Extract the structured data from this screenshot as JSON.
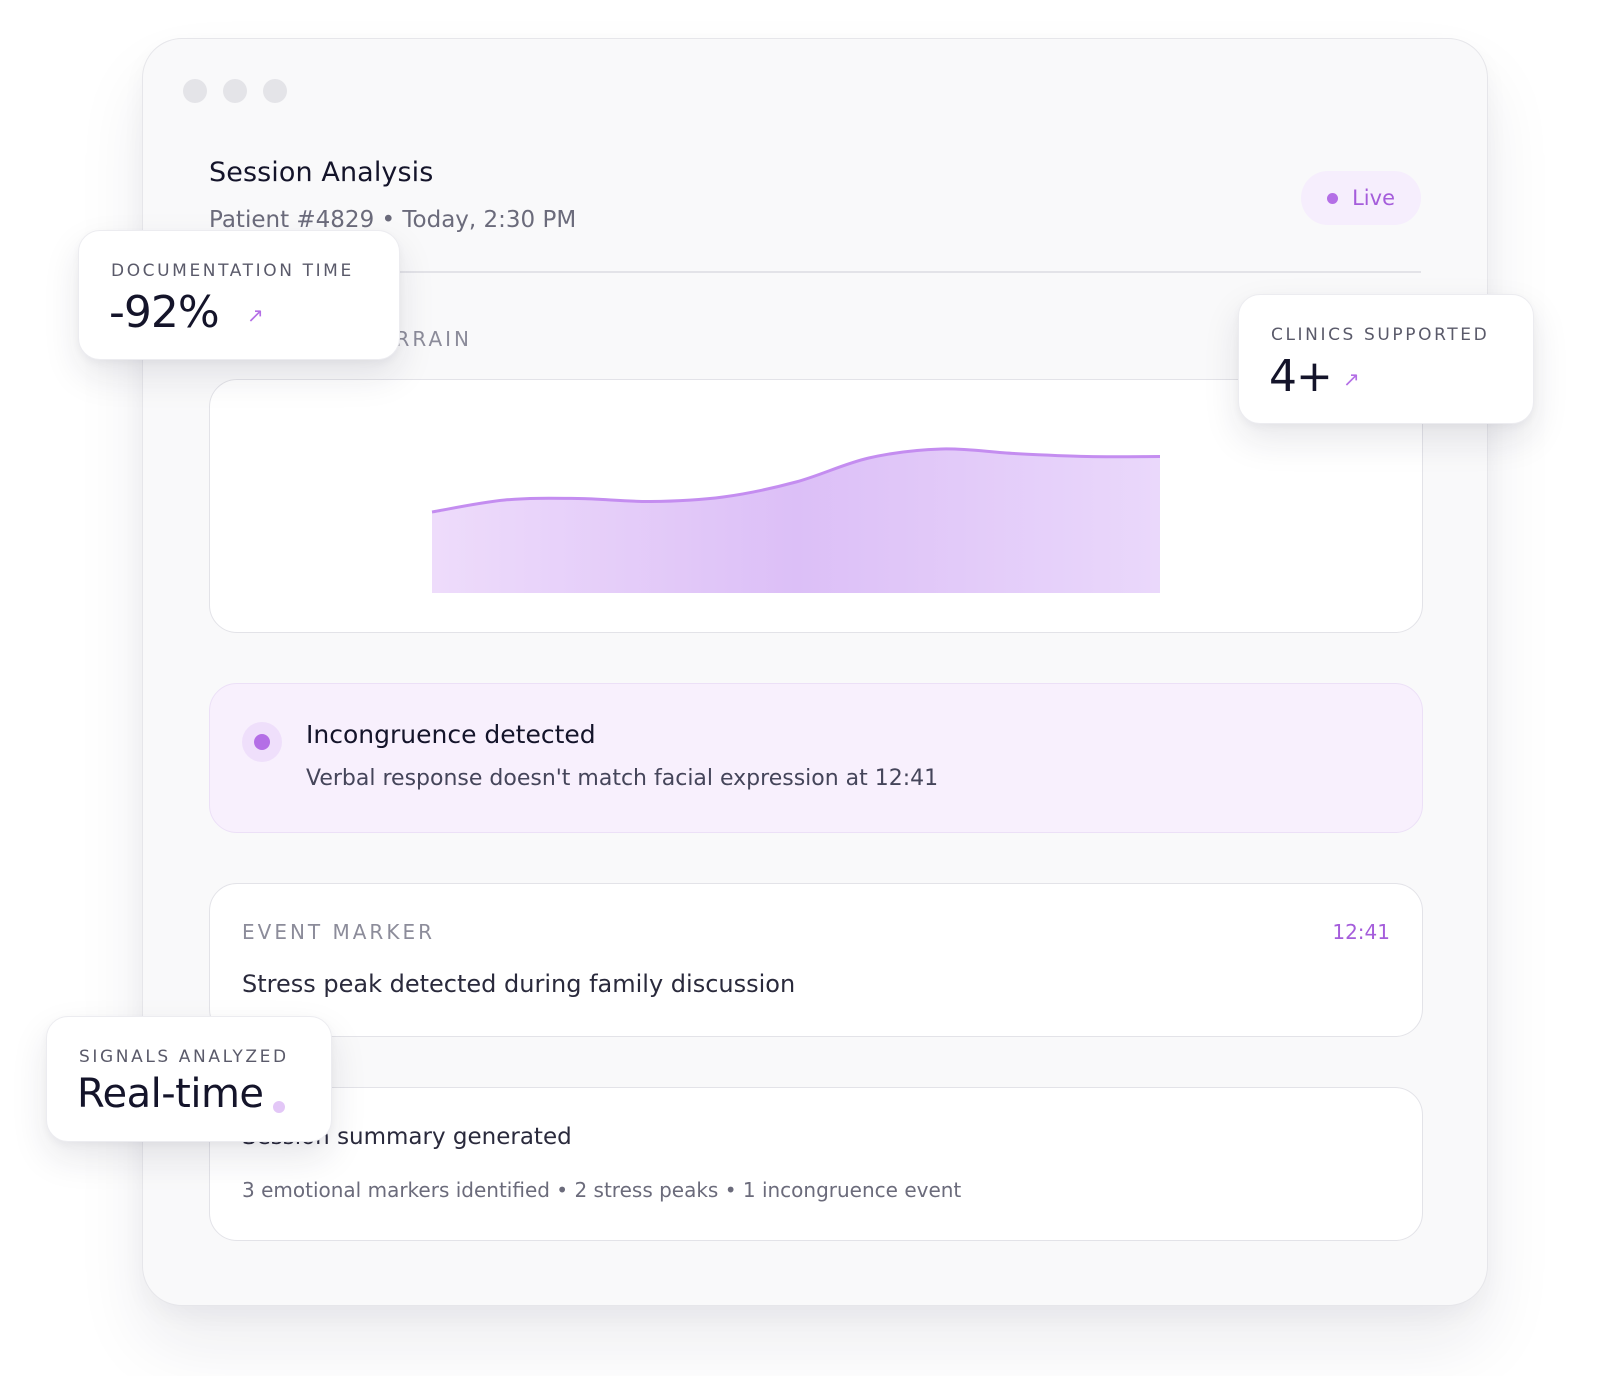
{
  "window": {
    "title": "Session Analysis",
    "subtitle": "Patient #4829 • Today, 2:30 PM",
    "status_label": "Live"
  },
  "section": {
    "label": "EMOTIONAL TERRAIN"
  },
  "chart_data": {
    "type": "area",
    "title": "",
    "xlabel": "",
    "ylabel": "",
    "x": [
      0,
      1,
      2,
      3,
      4,
      5,
      6,
      7,
      8,
      9,
      10
    ],
    "values": [
      0.54,
      0.62,
      0.63,
      0.61,
      0.64,
      0.74,
      0.9,
      0.96,
      0.93,
      0.91,
      0.91
    ],
    "ylim": [
      0,
      1
    ],
    "grid": false,
    "colors": {
      "fill": "#dcbff7",
      "line": "#c48df0"
    }
  },
  "alert": {
    "title": "Incongruence detected",
    "description": "Verbal response doesn't match facial expression at 12:41"
  },
  "event": {
    "label": "EVENT MARKER",
    "time": "12:41",
    "text": "Stress peak detected during family discussion"
  },
  "summary": {
    "title": "Session summary generated",
    "text": "3 emotional markers identified • 2 stress peaks • 1 incongruence event"
  },
  "stats": {
    "documentation": {
      "label": "DOCUMENTATION TIME",
      "value": "-92%",
      "icon": "arrow-up-right-icon"
    },
    "clinics": {
      "label": "CLINICS SUPPORTED",
      "value": "4+",
      "icon": "arrow-up-right-icon"
    },
    "signals": {
      "label": "SIGNALS ANALYZED",
      "value": "Real-time",
      "icon": "pulse-dot-icon"
    }
  },
  "colors": {
    "accent": "#b46fe6",
    "accent_bg": "#f8f0fd",
    "window_bg": "#f9f9fa"
  }
}
